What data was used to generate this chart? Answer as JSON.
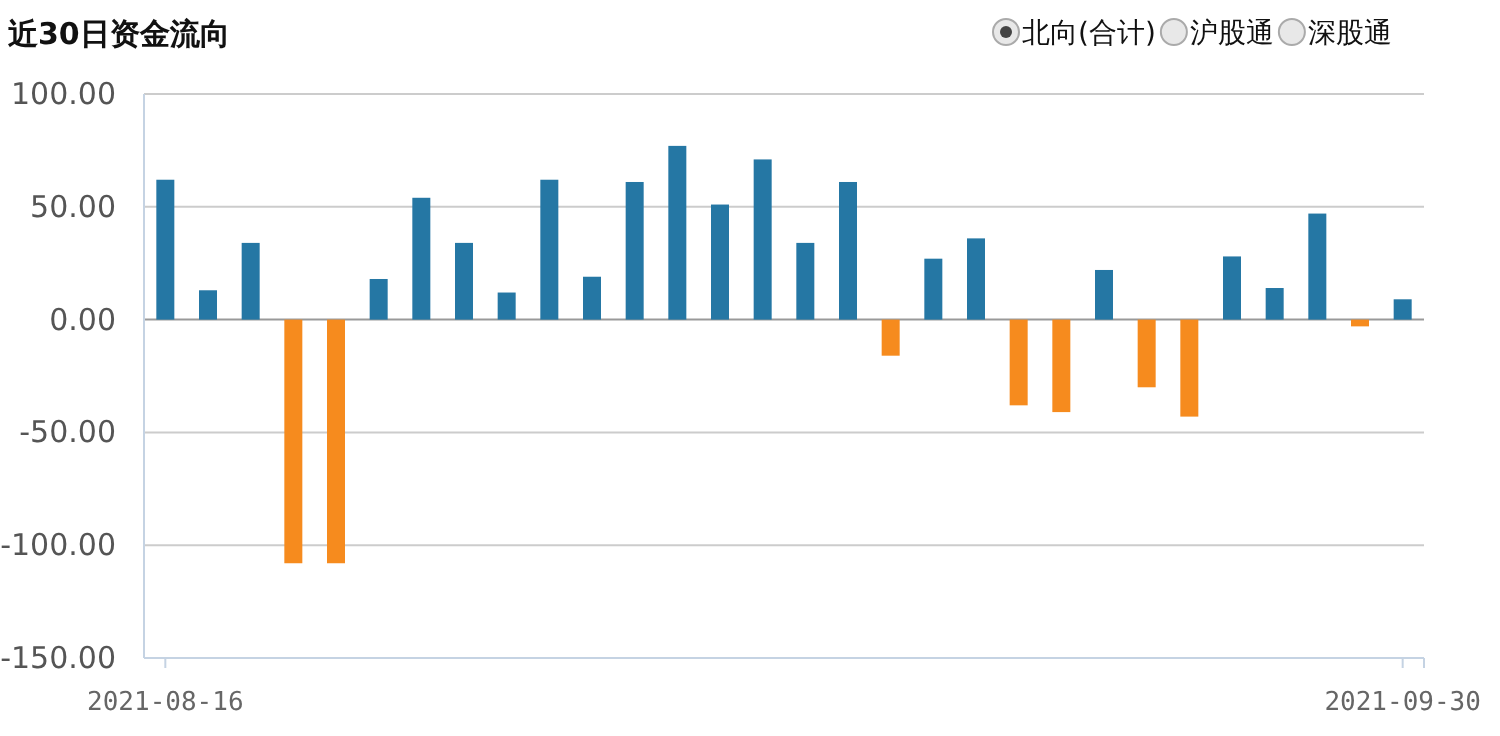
{
  "chart_data": {
    "type": "bar",
    "title": "近30日资金流向",
    "annotations": [
      "北向(合计)",
      "沪股通",
      "深股通"
    ],
    "categories": [
      "2021-08-16",
      null,
      null,
      null,
      null,
      null,
      null,
      null,
      null,
      null,
      null,
      null,
      null,
      null,
      null,
      null,
      null,
      null,
      null,
      null,
      null,
      null,
      null,
      null,
      null,
      null,
      null,
      null,
      null,
      "2021-09-30"
    ],
    "values": [
      62,
      13,
      34,
      -108,
      -108,
      18,
      54,
      34,
      12,
      62,
      19,
      61,
      77,
      51,
      71,
      34,
      61,
      -16,
      27,
      36,
      -38,
      -41,
      22,
      -30,
      -43,
      28,
      14,
      47,
      -3,
      9
    ],
    "colors": [
      "#2577a4",
      "#2577a4",
      "#2577a4",
      "#f68b1e",
      "#f68b1e",
      "#2577a4",
      "#2577a4",
      "#2577a4",
      "#2577a4",
      "#2577a4",
      "#2577a4",
      "#2577a4",
      "#2577a4",
      "#2577a4",
      "#2577a4",
      "#2577a4",
      "#2577a4",
      "#f68b1e",
      "#2577a4",
      "#2577a4",
      "#f68b1e",
      "#f68b1e",
      "#2577a4",
      "#f68b1e",
      "#f68b1e",
      "#2577a4",
      "#2577a4",
      "#2577a4",
      "#f68b1e",
      "#2577a4"
    ],
    "ylim": [
      -150,
      100
    ],
    "yticks": [
      {
        "value": 100,
        "label": "100.00"
      },
      {
        "value": 50,
        "label": "50.00"
      },
      {
        "value": 0,
        "label": "0.00"
      },
      {
        "value": -50,
        "label": "-50.00"
      },
      {
        "value": -100,
        "label": "-100.00"
      },
      {
        "value": -150,
        "label": "-150.00"
      }
    ],
    "grid": "y"
  }
}
